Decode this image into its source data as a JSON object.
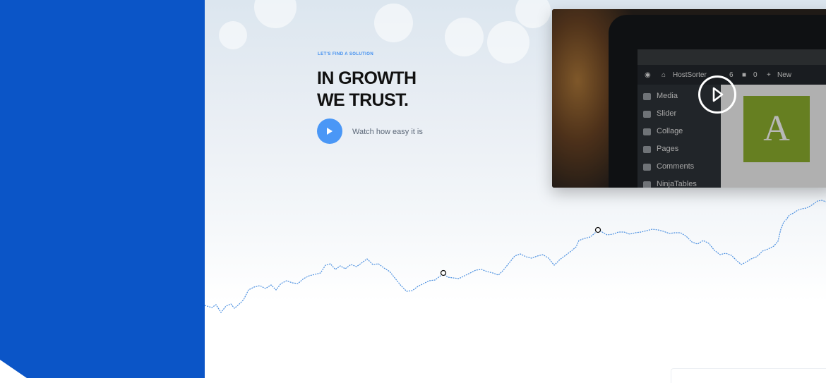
{
  "hero": {
    "eyebrow": "LET'S FIND A SOLUTION",
    "headline_line1": "IN GROWTH",
    "headline_line2": "WE TRUST.",
    "watch_text": "Watch how easy it is",
    "icons": {
      "play": "play-icon",
      "video_play": "play-circle-icon"
    }
  },
  "colors": {
    "panel_blue": "#0b55c7",
    "accent_blue": "#4a97f6",
    "line_blue": "#4a8fe0"
  },
  "video": {
    "admin_bar": {
      "site_name": "HostSorter",
      "comments_count": "0",
      "new_label": "New",
      "updates_count": "6"
    },
    "sidebar_menu": [
      "Media",
      "Slider",
      "Collage",
      "Pages",
      "Comments",
      "NinjaTables"
    ],
    "logo_letter": "A"
  }
}
